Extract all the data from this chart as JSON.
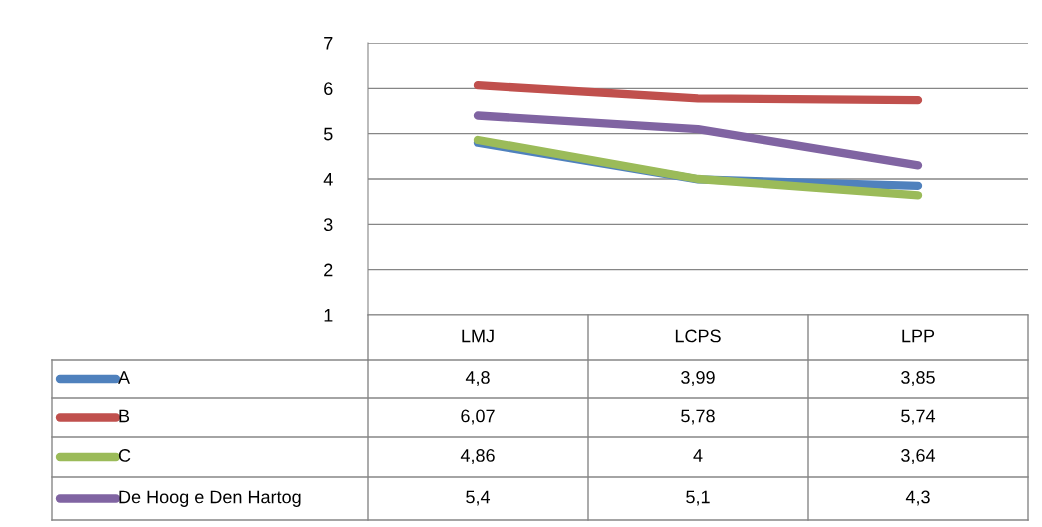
{
  "chart_data": {
    "type": "line",
    "categories": [
      "LMJ",
      "LCPS",
      "LPP"
    ],
    "series": [
      {
        "name": "A",
        "color": "#4f81bd",
        "values": [
          4.8,
          3.99,
          3.85
        ],
        "value_labels": [
          "4,8",
          "3,99",
          "3,85"
        ]
      },
      {
        "name": "B",
        "color": "#c0504d",
        "values": [
          6.07,
          5.78,
          5.74
        ],
        "value_labels": [
          "6,07",
          "5,78",
          "5,74"
        ]
      },
      {
        "name": "C",
        "color": "#9bbb59",
        "values": [
          4.86,
          4,
          3.64
        ],
        "value_labels": [
          "4,86",
          "4",
          "3,64"
        ]
      },
      {
        "name": "De Hoog e Den Hartog",
        "color": "#8064a2",
        "values": [
          5.4,
          5.1,
          4.3
        ],
        "value_labels": [
          "5,4",
          "5,1",
          "4,3"
        ]
      }
    ],
    "ylim": [
      1,
      7
    ],
    "yticks": [
      1,
      2,
      3,
      4,
      5,
      6,
      7
    ],
    "grid": "y",
    "legend": "bottom",
    "marker": "none",
    "line_style": "solid"
  }
}
